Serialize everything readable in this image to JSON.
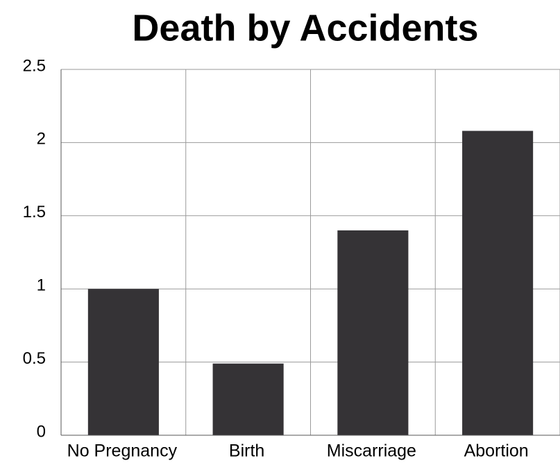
{
  "chart_data": {
    "type": "bar",
    "title": "Death by Accidents",
    "categories": [
      "No Pregnancy",
      "Birth",
      "Miscarriage",
      "Abortion"
    ],
    "values": [
      1.0,
      0.49,
      1.4,
      2.08
    ],
    "color": "#353336",
    "ylim": [
      0,
      2.5
    ],
    "yticks": [
      0,
      0.5,
      1,
      1.5,
      2,
      2.5
    ],
    "grid": true
  }
}
